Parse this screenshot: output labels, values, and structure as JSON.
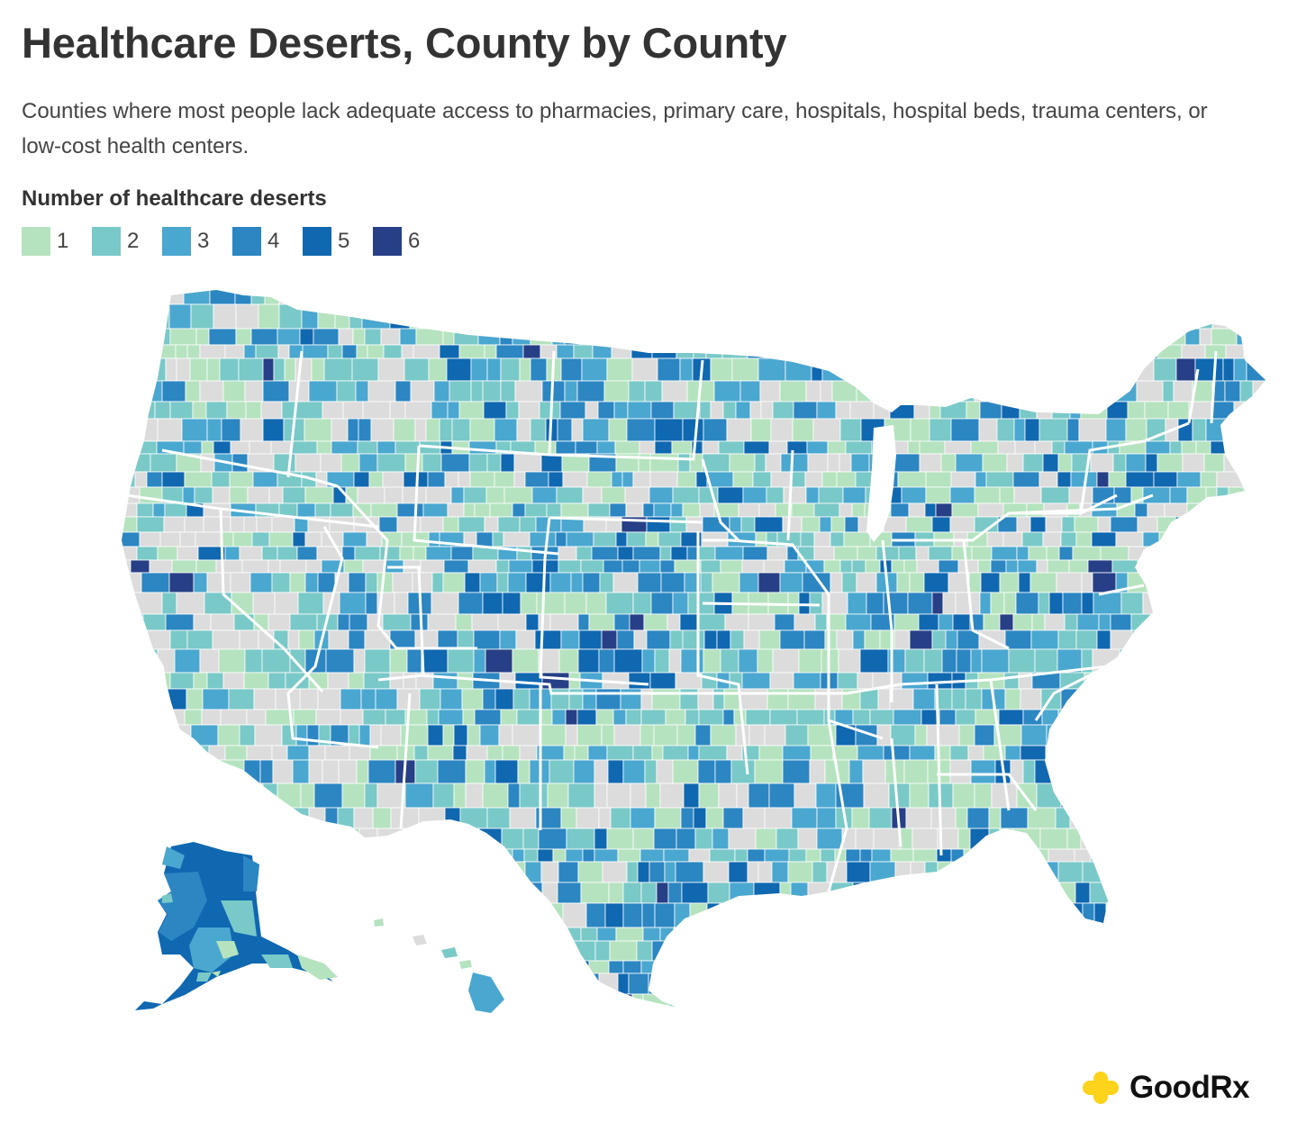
{
  "header": {
    "title": "Healthcare Deserts, County by County",
    "subtitle": "Counties where most people lack adequate access to pharmacies, primary care, hospitals, hospital beds, trauma centers, or low-cost health centers."
  },
  "legend": {
    "title": "Number of healthcare deserts",
    "items": [
      {
        "label": "1",
        "color": "#b5e3bf"
      },
      {
        "label": "2",
        "color": "#79c9c8"
      },
      {
        "label": "3",
        "color": "#4aa7d0"
      },
      {
        "label": "4",
        "color": "#2b86c2"
      },
      {
        "label": "5",
        "color": "#0f68b0"
      },
      {
        "label": "6",
        "color": "#263f86"
      }
    ],
    "no_desert_color": "#dcdcdc"
  },
  "map": {
    "region": "United States counties",
    "boundary_color": "#ffffff"
  },
  "logo": {
    "brand": "GoodRx",
    "icon": "plus-cross-icon",
    "icon_color": "#fdd31b"
  }
}
